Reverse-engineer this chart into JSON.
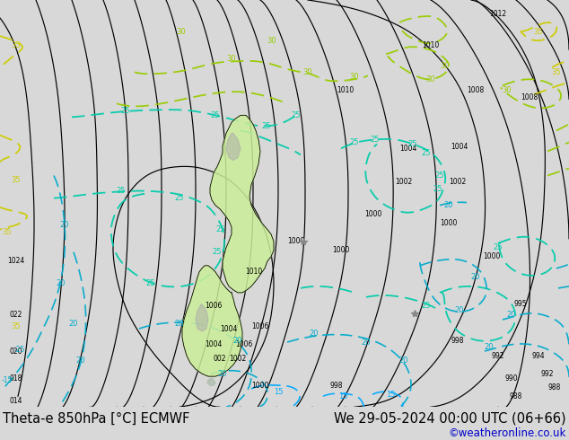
{
  "bg_color": "#d8d8d8",
  "map_bg_color": "#d8d8d8",
  "title_left": "Theta-e 850hPa [°C] ECMWF",
  "title_right": "We 29-05-2024 00:00 UTC (06+66)",
  "credit": "©weatheronline.co.uk",
  "title_fontsize": 10.5,
  "credit_fontsize": 8.5,
  "title_color": "#000000",
  "credit_color": "#0000cc",
  "fig_width": 6.34,
  "fig_height": 4.9,
  "dpi": 100,
  "pressure_color": "#000000",
  "theta_30_color": "#99cc00",
  "theta_25_color": "#00ccaa",
  "theta_20_color": "#00aacc",
  "theta_15_color": "#00aaff",
  "theta_35_color": "#cccc00",
  "nz_green": "#ccee99",
  "nz_dark_green": "#88cc44"
}
